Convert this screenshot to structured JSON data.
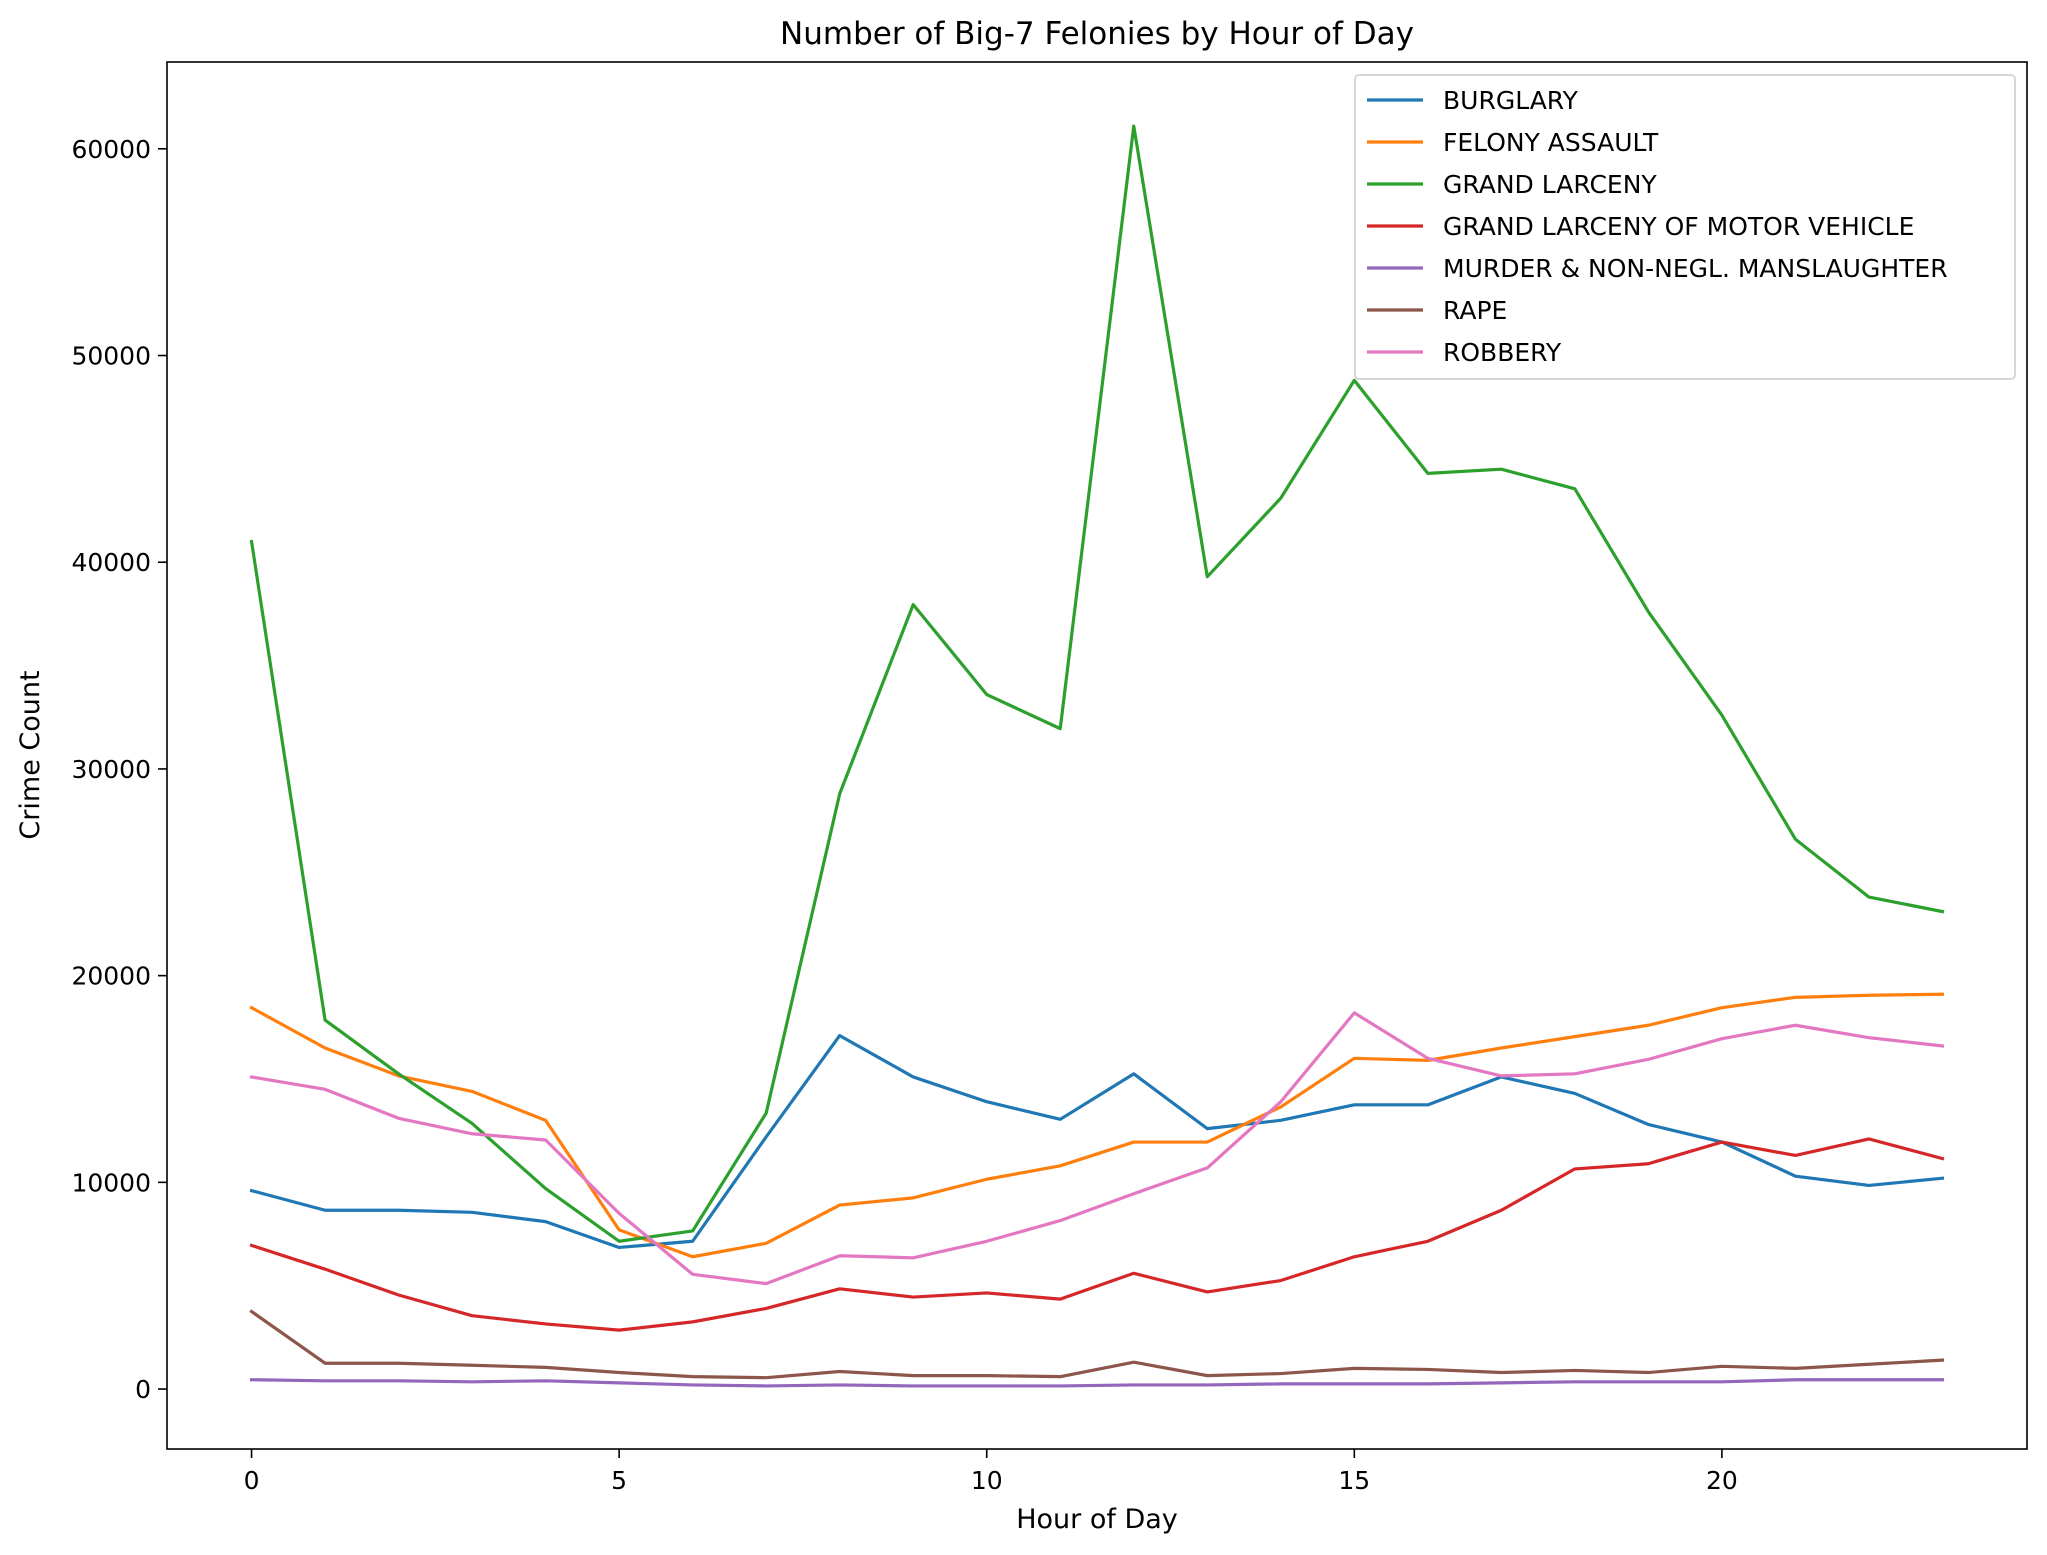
{
  "chart_data": {
    "type": "line",
    "title": "Number of Big-7 Felonies by Hour of Day",
    "xlabel": "Hour of Day",
    "ylabel": "Crime Count",
    "xlim": [
      -1.15,
      24.15
    ],
    "ylim": [
      -2900,
      64200
    ],
    "xticks": [
      0,
      5,
      10,
      15,
      20
    ],
    "yticks": [
      0,
      10000,
      20000,
      30000,
      40000,
      50000,
      60000
    ],
    "grid": false,
    "legend_position": "top-right",
    "x": [
      0,
      1,
      2,
      3,
      4,
      5,
      6,
      7,
      8,
      9,
      10,
      11,
      12,
      13,
      14,
      15,
      16,
      17,
      18,
      19,
      20,
      21,
      22,
      23
    ],
    "series": [
      {
        "name": "BURGLARY",
        "color": "#1f77b4",
        "values": [
          9600,
          8650,
          8650,
          8550,
          8100,
          6850,
          7150,
          12200,
          17100,
          15100,
          13900,
          13050,
          15250,
          12600,
          13000,
          13750,
          13750,
          15100,
          14300,
          12800,
          11950,
          10300,
          9850,
          10200
        ]
      },
      {
        "name": "FELONY ASSAULT",
        "color": "#ff7f0e",
        "values": [
          18450,
          16500,
          15150,
          14400,
          13000,
          7700,
          6400,
          7050,
          8900,
          9250,
          10150,
          10800,
          11950,
          11950,
          13650,
          16000,
          15900,
          16500,
          17050,
          17600,
          18450,
          18950,
          19050,
          19100
        ]
      },
      {
        "name": "GRAND LARCENY",
        "color": "#2ca02c",
        "values": [
          41000,
          17850,
          15250,
          12850,
          9700,
          7150,
          7650,
          13350,
          28800,
          37950,
          33600,
          31950,
          61100,
          39300,
          43100,
          48800,
          44300,
          44500,
          43550,
          37600,
          32600,
          26600,
          23800,
          23100
        ]
      },
      {
        "name": "GRAND LARCENY OF MOTOR VEHICLE",
        "color": "#d62728",
        "values": [
          6950,
          5800,
          4550,
          3550,
          3150,
          2850,
          3250,
          3900,
          4850,
          4450,
          4650,
          4350,
          5600,
          4700,
          5250,
          6400,
          7150,
          8650,
          10650,
          10900,
          11950,
          11300,
          12100,
          11150
        ]
      },
      {
        "name": "MURDER & NON-NEGL. MANSLAUGHTER",
        "color": "#9467bd",
        "values": [
          450,
          400,
          400,
          350,
          400,
          300,
          200,
          150,
          200,
          150,
          150,
          150,
          200,
          200,
          250,
          250,
          250,
          300,
          350,
          350,
          350,
          450,
          450,
          450
        ]
      },
      {
        "name": "RAPE",
        "color": "#8c564b",
        "values": [
          3750,
          1250,
          1250,
          1150,
          1050,
          800,
          600,
          550,
          850,
          650,
          650,
          600,
          1300,
          650,
          750,
          1000,
          950,
          800,
          900,
          800,
          1100,
          1000,
          1200,
          1400
        ]
      },
      {
        "name": "ROBBERY",
        "color": "#e377c2",
        "values": [
          15100,
          14500,
          13100,
          12350,
          12050,
          8500,
          5550,
          5100,
          6450,
          6350,
          7150,
          8150,
          9450,
          10700,
          13900,
          18200,
          16000,
          15150,
          15250,
          15950,
          16950,
          17600,
          17000,
          16600
        ]
      }
    ]
  }
}
